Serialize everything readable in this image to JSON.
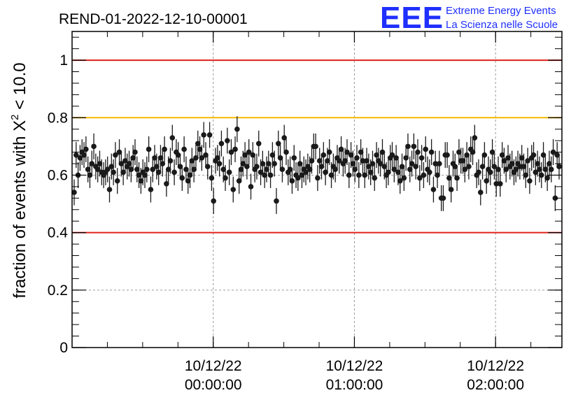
{
  "chart_data": {
    "type": "scatter",
    "title": "REND-01-2022-12-10-00001",
    "ylabel": "fraction of events with",
    "ylabel_symbol": "X",
    "ylabel_sup": "2",
    "ylabel_tail": "< 10.0",
    "xlabel": "",
    "ylim": [
      0,
      1.1
    ],
    "xlim_hours": [
      -1.0,
      2.47
    ],
    "grid": true,
    "x_ticks": [
      {
        "hour": 0,
        "date": "10/12/22",
        "time": "00:00:00"
      },
      {
        "hour": 1,
        "date": "10/12/22",
        "time": "01:00:00"
      },
      {
        "hour": 2,
        "date": "10/12/22",
        "time": "02:00:00"
      }
    ],
    "y_ticks": [
      {
        "value": 0,
        "label": "0"
      },
      {
        "value": 0.2,
        "label": "0.2"
      },
      {
        "value": 0.4,
        "label": "0.4"
      },
      {
        "value": 0.6,
        "label": "0.6"
      },
      {
        "value": 0.8,
        "label": "0.8"
      },
      {
        "value": 1,
        "label": "1"
      }
    ],
    "reference_lines": [
      {
        "value": 1.0,
        "color": "#e0201b"
      },
      {
        "value": 0.8,
        "color": "#f5b800"
      },
      {
        "value": 0.4,
        "color": "#e0201b"
      }
    ],
    "marker_color": "#1a1a1a",
    "error": 0.045,
    "values": [
      0.54,
      0.67,
      0.6,
      0.66,
      0.68,
      0.67,
      0.69,
      0.62,
      0.6,
      0.64,
      0.7,
      0.63,
      0.62,
      0.64,
      0.61,
      0.6,
      0.61,
      0.62,
      0.55,
      0.63,
      0.61,
      0.67,
      0.58,
      0.68,
      0.64,
      0.61,
      0.65,
      0.63,
      0.64,
      0.62,
      0.66,
      0.68,
      0.62,
      0.6,
      0.58,
      0.61,
      0.6,
      0.62,
      0.69,
      0.55,
      0.62,
      0.66,
      0.63,
      0.61,
      0.66,
      0.64,
      0.69,
      0.57,
      0.62,
      0.65,
      0.73,
      0.61,
      0.68,
      0.67,
      0.63,
      0.59,
      0.69,
      0.62,
      0.58,
      0.6,
      0.65,
      0.62,
      0.66,
      0.71,
      0.69,
      0.66,
      0.74,
      0.67,
      0.63,
      0.74,
      0.59,
      0.51,
      0.65,
      0.66,
      0.64,
      0.71,
      0.62,
      0.59,
      0.72,
      0.61,
      0.68,
      0.55,
      0.69,
      0.76,
      0.58,
      0.62,
      0.64,
      0.67,
      0.63,
      0.68,
      0.56,
      0.67,
      0.62,
      0.63,
      0.71,
      0.61,
      0.64,
      0.6,
      0.62,
      0.64,
      0.6,
      0.67,
      0.64,
      0.51,
      0.71,
      0.66,
      0.62,
      0.73,
      0.68,
      0.61,
      0.62,
      0.58,
      0.66,
      0.6,
      0.59,
      0.64,
      0.6,
      0.62,
      0.61,
      0.63,
      0.62,
      0.65,
      0.7,
      0.7,
      0.59,
      0.65,
      0.63,
      0.67,
      0.61,
      0.65,
      0.68,
      0.6,
      0.63,
      0.62,
      0.66,
      0.65,
      0.69,
      0.64,
      0.65,
      0.68,
      0.6,
      0.67,
      0.64,
      0.62,
      0.66,
      0.6,
      0.68,
      0.65,
      0.6,
      0.65,
      0.63,
      0.61,
      0.64,
      0.59,
      0.67,
      0.65,
      0.64,
      0.68,
      0.63,
      0.6,
      0.61,
      0.66,
      0.67,
      0.62,
      0.66,
      0.61,
      0.58,
      0.63,
      0.59,
      0.66,
      0.7,
      0.62,
      0.64,
      0.7,
      0.63,
      0.68,
      0.59,
      0.66,
      0.6,
      0.69,
      0.62,
      0.61,
      0.68,
      0.55,
      0.64,
      0.6,
      0.64,
      0.52,
      0.52,
      0.67,
      0.67,
      0.59,
      0.55,
      0.64,
      0.63,
      0.59,
      0.68,
      0.65,
      0.65,
      0.62,
      0.67,
      0.63,
      0.69,
      0.68,
      0.73,
      0.6,
      0.61,
      0.54,
      0.63,
      0.67,
      0.58,
      0.62,
      0.61,
      0.68,
      0.63,
      0.57,
      0.62,
      0.57,
      0.67,
      0.65,
      0.62,
      0.66,
      0.63,
      0.64,
      0.61,
      0.62,
      0.64,
      0.63,
      0.66,
      0.63,
      0.6,
      0.65,
      0.58,
      0.66,
      0.67,
      0.61,
      0.64,
      0.62,
      0.6,
      0.67,
      0.62,
      0.59,
      0.64,
      0.62,
      0.68,
      0.52,
      0.67,
      0.63
    ]
  },
  "logo": {
    "mark": "EEE",
    "line1": "Extreme Energy Events",
    "line2": "La Scienza nelle Scuole"
  }
}
